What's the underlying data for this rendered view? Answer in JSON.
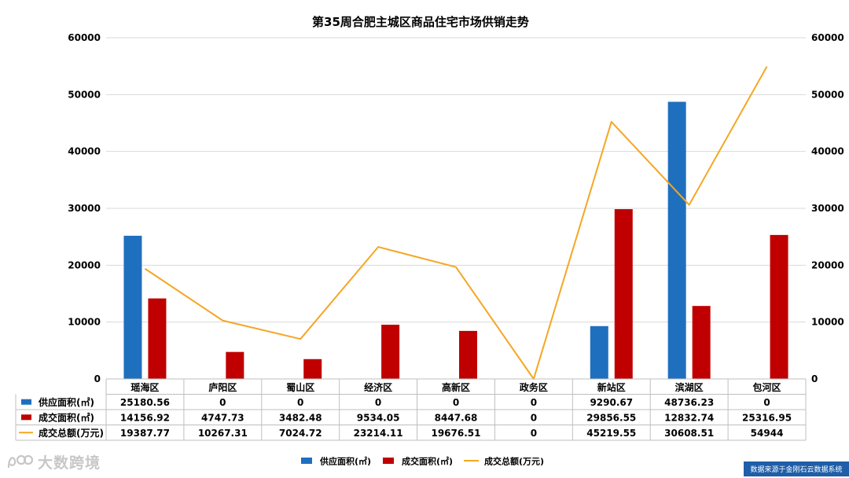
{
  "chart_data": {
    "type": "bar",
    "title": "第35周合肥主城区商品住宅市场供销走势",
    "categories": [
      "瑶海区",
      "庐阳区",
      "蜀山区",
      "经济区",
      "高新区",
      "政务区",
      "新站区",
      "滨湖区",
      "包河区"
    ],
    "series": [
      {
        "name": "供应面积(㎡)",
        "kind": "bar",
        "color": "#1f6fbf",
        "values": [
          25180.56,
          0,
          0,
          0,
          0,
          0,
          9290.67,
          48736.23,
          0
        ],
        "labels": [
          "25180.56",
          "0",
          "0",
          "0",
          "0",
          "0",
          "9290.67",
          "48736.23",
          "0"
        ]
      },
      {
        "name": "成交面积(㎡)",
        "kind": "bar",
        "color": "#c00000",
        "values": [
          14156.92,
          4747.73,
          3482.48,
          9534.05,
          8447.68,
          0,
          29856.55,
          12832.74,
          25316.95
        ],
        "labels": [
          "14156.92",
          "4747.73",
          "3482.48",
          "9534.05",
          "8447.68",
          "0",
          "29856.55",
          "12832.74",
          "25316.95"
        ]
      },
      {
        "name": "成交总额(万元)",
        "kind": "line",
        "color": "#f5a623",
        "axis": "right",
        "values": [
          19387.77,
          10267.31,
          7024.72,
          23214.11,
          19676.51,
          0,
          45219.55,
          30608.51,
          54944
        ],
        "labels": [
          "19387.77",
          "10267.31",
          "7024.72",
          "23214.11",
          "19676.51",
          "0",
          "45219.55",
          "30608.51",
          "54944"
        ]
      }
    ],
    "ylim": [
      0,
      60000
    ],
    "y_ticks": [
      0,
      10000,
      20000,
      30000,
      40000,
      50000,
      60000
    ],
    "y2lim": [
      0,
      60000
    ],
    "y2_ticks": [
      0,
      10000,
      20000,
      30000,
      40000,
      50000,
      60000
    ],
    "grid": true,
    "legend": "bottom",
    "data_table": true
  },
  "watermark": {
    "text": "大数跨境"
  },
  "source_note": "数据来源于金刚石云数据系统"
}
